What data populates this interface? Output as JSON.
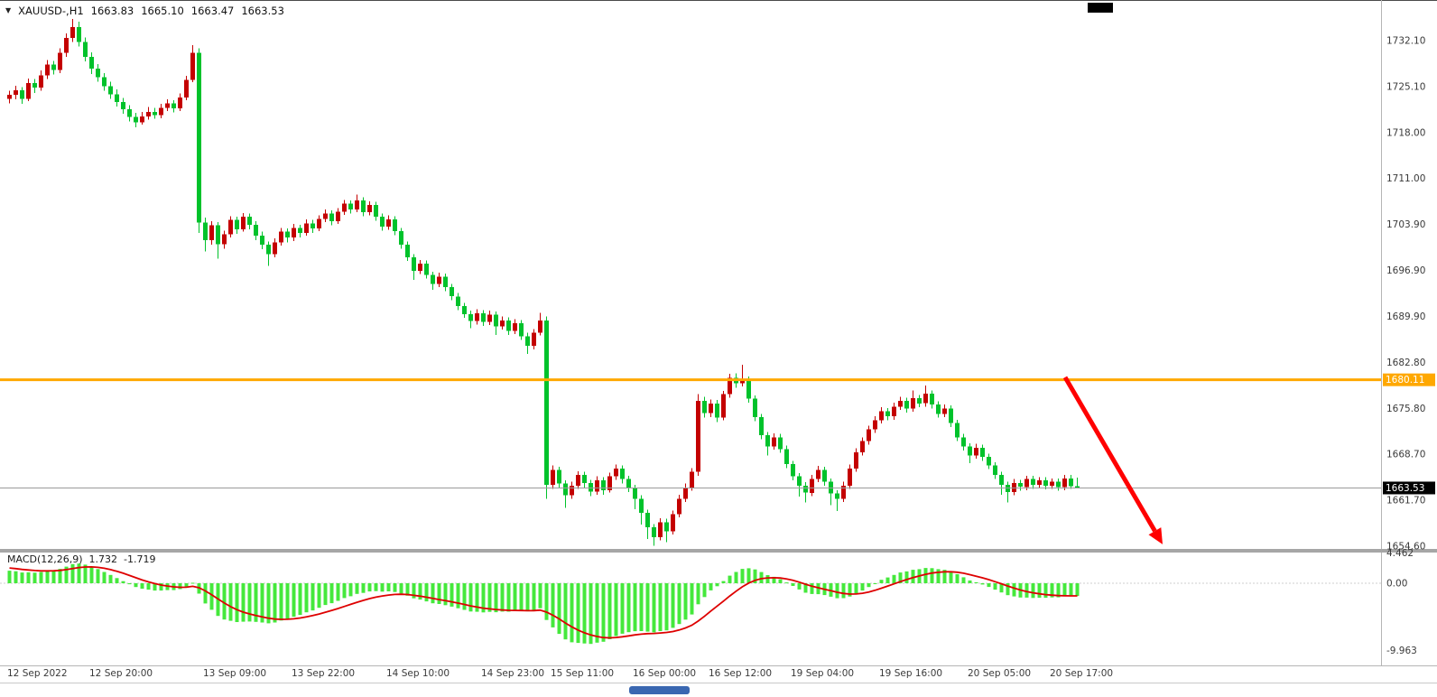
{
  "header": {
    "dropdown_icon": "▼",
    "symbol": "XAUUSD-,H1",
    "open": "1663.83",
    "high": "1665.10",
    "low": "1663.47",
    "close": "1663.53"
  },
  "colors": {
    "up": "#C40000",
    "down": "#00C22B",
    "hline": "#FFA800",
    "macd_hist": "#45E83C",
    "macd_signal": "#DE0000",
    "arrow": "#FF0000",
    "current_price_bg": "#000000",
    "scale_text": "#3a3a3a"
  },
  "chart_data": {
    "type": "candlestick",
    "symbol": "XAUUSD-",
    "timeframe": "H1",
    "y_axis": {
      "side": "right",
      "ticks": [
        "1732.10",
        "1725.10",
        "1718.00",
        "1711.00",
        "1703.90",
        "1696.90",
        "1689.90",
        "1682.80",
        "1675.80",
        "1668.70",
        "1661.70",
        "1654.60"
      ]
    },
    "x_axis": {
      "labels": [
        {
          "i": 0,
          "label": "12 Sep 2022"
        },
        {
          "i": 13,
          "label": "12 Sep 20:00"
        },
        {
          "i": 31,
          "label": "13 Sep 09:00"
        },
        {
          "i": 45,
          "label": "13 Sep 22:00"
        },
        {
          "i": 60,
          "label": "14 Sep 10:00"
        },
        {
          "i": 75,
          "label": "14 Sep 23:00"
        },
        {
          "i": 86,
          "label": "15 Sep 11:00"
        },
        {
          "i": 99,
          "label": "16 Sep 00:00"
        },
        {
          "i": 111,
          "label": "16 Sep 12:00"
        },
        {
          "i": 124,
          "label": "19 Sep 04:00"
        },
        {
          "i": 138,
          "label": "19 Sep 16:00"
        },
        {
          "i": 152,
          "label": "20 Sep 05:00"
        },
        {
          "i": 165,
          "label": "20 Sep 17:00"
        }
      ]
    },
    "current_price": "1663.53",
    "annotations": {
      "hline": {
        "label": "1680.11",
        "price": 1680.11
      },
      "arrow": {
        "direction": "down",
        "from_price": 1680.5,
        "to_price": 1654.9
      }
    },
    "indicator": {
      "label": "MACD(12,26,9)",
      "value_main": "1.732",
      "value_signal": "-1.719",
      "ticks": [
        "4.462",
        "0.00",
        "-9.963"
      ]
    },
    "candles": [
      [
        1723.2,
        1724.4,
        1722.5,
        1723.8
      ],
      [
        1723.8,
        1725.2,
        1723.1,
        1724.5
      ],
      [
        1724.5,
        1725.0,
        1722.4,
        1723.2
      ],
      [
        1723.2,
        1726.3,
        1722.8,
        1725.6
      ],
      [
        1725.6,
        1726.2,
        1724.1,
        1724.9
      ],
      [
        1724.9,
        1727.5,
        1724.4,
        1726.8
      ],
      [
        1726.8,
        1729.1,
        1726.2,
        1728.4
      ],
      [
        1728.4,
        1729.0,
        1726.9,
        1727.6
      ],
      [
        1727.6,
        1730.9,
        1727.1,
        1730.2
      ],
      [
        1730.2,
        1733.2,
        1729.6,
        1732.5
      ],
      [
        1732.5,
        1735.4,
        1731.9,
        1734.2
      ],
      [
        1734.2,
        1735.0,
        1731.2,
        1731.9
      ],
      [
        1731.9,
        1732.6,
        1728.9,
        1729.6
      ],
      [
        1729.6,
        1730.3,
        1727.0,
        1727.8
      ],
      [
        1727.8,
        1728.5,
        1725.8,
        1726.5
      ],
      [
        1726.5,
        1727.1,
        1724.4,
        1725.1
      ],
      [
        1725.1,
        1725.8,
        1723.2,
        1723.9
      ],
      [
        1723.9,
        1724.6,
        1722.0,
        1722.7
      ],
      [
        1722.7,
        1723.3,
        1720.9,
        1721.6
      ],
      [
        1721.6,
        1722.2,
        1719.7,
        1720.4
      ],
      [
        1720.4,
        1721.0,
        1718.8,
        1719.6
      ],
      [
        1719.6,
        1721.2,
        1719.2,
        1720.5
      ],
      [
        1720.5,
        1721.9,
        1720.0,
        1721.2
      ],
      [
        1721.2,
        1721.8,
        1720.1,
        1720.7
      ],
      [
        1720.7,
        1722.4,
        1720.2,
        1721.8
      ],
      [
        1721.8,
        1723.1,
        1721.3,
        1722.5
      ],
      [
        1722.5,
        1723.0,
        1721.1,
        1721.7
      ],
      [
        1721.7,
        1724.0,
        1721.3,
        1723.4
      ],
      [
        1723.4,
        1726.7,
        1723.0,
        1726.1
      ],
      [
        1726.1,
        1731.4,
        1725.7,
        1730.2
      ],
      [
        1730.2,
        1730.9,
        1702.6,
        1704.2
      ],
      [
        1704.2,
        1705.0,
        1699.8,
        1701.5
      ],
      [
        1701.5,
        1704.4,
        1700.8,
        1703.8
      ],
      [
        1703.8,
        1704.3,
        1698.7,
        1700.9
      ],
      [
        1700.9,
        1703.0,
        1700.2,
        1702.4
      ],
      [
        1702.4,
        1705.2,
        1701.9,
        1704.6
      ],
      [
        1704.6,
        1705.1,
        1702.5,
        1703.2
      ],
      [
        1703.2,
        1705.7,
        1702.8,
        1705.1
      ],
      [
        1705.1,
        1705.6,
        1703.2,
        1703.9
      ],
      [
        1703.9,
        1704.4,
        1701.5,
        1702.2
      ],
      [
        1702.2,
        1702.8,
        1700.1,
        1700.8
      ],
      [
        1700.8,
        1701.3,
        1697.6,
        1699.4
      ],
      [
        1699.4,
        1701.8,
        1698.9,
        1701.2
      ],
      [
        1701.2,
        1703.4,
        1700.7,
        1702.8
      ],
      [
        1702.8,
        1703.3,
        1701.2,
        1701.9
      ],
      [
        1701.9,
        1704.0,
        1701.4,
        1703.4
      ],
      [
        1703.4,
        1703.9,
        1701.9,
        1702.6
      ],
      [
        1702.6,
        1704.7,
        1702.2,
        1704.1
      ],
      [
        1704.1,
        1704.6,
        1702.6,
        1703.3
      ],
      [
        1703.3,
        1705.3,
        1702.9,
        1704.8
      ],
      [
        1704.8,
        1706.2,
        1704.3,
        1705.6
      ],
      [
        1705.6,
        1706.1,
        1703.8,
        1704.4
      ],
      [
        1704.4,
        1706.4,
        1704.0,
        1705.9
      ],
      [
        1705.9,
        1707.7,
        1705.4,
        1707.1
      ],
      [
        1707.1,
        1707.6,
        1705.6,
        1706.2
      ],
      [
        1706.2,
        1708.5,
        1705.8,
        1707.6
      ],
      [
        1707.6,
        1708.1,
        1705.2,
        1705.8
      ],
      [
        1705.8,
        1707.5,
        1705.3,
        1706.9
      ],
      [
        1706.9,
        1707.4,
        1704.5,
        1705.1
      ],
      [
        1705.1,
        1705.6,
        1703.0,
        1703.6
      ],
      [
        1703.6,
        1705.3,
        1703.1,
        1704.7
      ],
      [
        1704.7,
        1705.2,
        1702.3,
        1702.9
      ],
      [
        1702.9,
        1703.4,
        1700.2,
        1700.8
      ],
      [
        1700.8,
        1701.3,
        1698.3,
        1698.9
      ],
      [
        1698.9,
        1699.4,
        1695.4,
        1696.8
      ],
      [
        1696.8,
        1698.5,
        1696.3,
        1697.9
      ],
      [
        1697.9,
        1698.4,
        1695.6,
        1696.2
      ],
      [
        1696.2,
        1696.7,
        1693.9,
        1694.8
      ],
      [
        1694.8,
        1696.5,
        1694.3,
        1695.9
      ],
      [
        1695.9,
        1696.4,
        1693.7,
        1694.3
      ],
      [
        1694.3,
        1694.8,
        1692.3,
        1692.9
      ],
      [
        1692.9,
        1693.4,
        1690.8,
        1691.4
      ],
      [
        1691.4,
        1691.9,
        1689.6,
        1690.2
      ],
      [
        1690.2,
        1690.7,
        1688.0,
        1689.1
      ],
      [
        1689.1,
        1690.9,
        1688.6,
        1690.3
      ],
      [
        1690.3,
        1690.8,
        1688.4,
        1689.0
      ],
      [
        1689.0,
        1690.7,
        1688.5,
        1690.1
      ],
      [
        1690.1,
        1690.6,
        1687.0,
        1688.3
      ],
      [
        1688.3,
        1689.8,
        1687.8,
        1689.2
      ],
      [
        1689.2,
        1689.7,
        1687.0,
        1687.6
      ],
      [
        1687.6,
        1689.4,
        1687.1,
        1688.8
      ],
      [
        1688.8,
        1689.3,
        1686.2,
        1686.8
      ],
      [
        1686.8,
        1687.3,
        1684.1,
        1685.3
      ],
      [
        1685.3,
        1687.9,
        1684.8,
        1687.3
      ],
      [
        1687.3,
        1690.4,
        1686.9,
        1689.2
      ],
      [
        1689.2,
        1689.8,
        1661.9,
        1664.0
      ],
      [
        1664.0,
        1667.0,
        1663.4,
        1666.3
      ],
      [
        1666.3,
        1666.8,
        1663.5,
        1664.2
      ],
      [
        1664.2,
        1664.7,
        1660.5,
        1662.4
      ],
      [
        1662.4,
        1664.5,
        1661.9,
        1663.9
      ],
      [
        1663.9,
        1666.1,
        1663.4,
        1665.5
      ],
      [
        1665.5,
        1666.0,
        1663.6,
        1664.3
      ],
      [
        1664.3,
        1664.8,
        1662.3,
        1663.0
      ],
      [
        1663.0,
        1665.3,
        1662.5,
        1664.7
      ],
      [
        1664.7,
        1665.2,
        1662.5,
        1663.2
      ],
      [
        1663.2,
        1665.9,
        1662.8,
        1665.3
      ],
      [
        1665.3,
        1667.1,
        1664.8,
        1666.5
      ],
      [
        1666.5,
        1667.0,
        1664.2,
        1664.9
      ],
      [
        1664.9,
        1665.4,
        1662.9,
        1663.5
      ],
      [
        1663.5,
        1664.0,
        1660.3,
        1661.9
      ],
      [
        1661.9,
        1662.4,
        1657.9,
        1659.7
      ],
      [
        1659.7,
        1660.2,
        1655.7,
        1657.5
      ],
      [
        1657.5,
        1658.0,
        1654.7,
        1656.0
      ],
      [
        1656.0,
        1658.9,
        1655.5,
        1658.3
      ],
      [
        1658.3,
        1658.8,
        1655.2,
        1656.9
      ],
      [
        1656.9,
        1660.1,
        1656.4,
        1659.5
      ],
      [
        1659.5,
        1662.5,
        1659.0,
        1661.9
      ],
      [
        1661.9,
        1664.2,
        1661.4,
        1663.6
      ],
      [
        1663.6,
        1666.6,
        1663.1,
        1666.0
      ],
      [
        1666.0,
        1677.9,
        1665.4,
        1676.9
      ],
      [
        1676.9,
        1677.5,
        1674.3,
        1675.0
      ],
      [
        1675.0,
        1677.1,
        1674.4,
        1676.5
      ],
      [
        1676.5,
        1677.0,
        1673.6,
        1674.3
      ],
      [
        1674.3,
        1678.4,
        1673.9,
        1677.9
      ],
      [
        1677.9,
        1681.0,
        1677.4,
        1680.4
      ],
      [
        1680.4,
        1681.1,
        1678.9,
        1679.6
      ],
      [
        1679.6,
        1682.4,
        1679.1,
        1680.1
      ],
      [
        1680.1,
        1680.6,
        1676.6,
        1677.2
      ],
      [
        1677.2,
        1677.7,
        1673.8,
        1674.4
      ],
      [
        1674.4,
        1674.9,
        1671.0,
        1671.6
      ],
      [
        1671.6,
        1672.1,
        1668.5,
        1669.9
      ],
      [
        1669.9,
        1671.9,
        1669.4,
        1671.3
      ],
      [
        1671.3,
        1671.8,
        1668.9,
        1669.5
      ],
      [
        1669.5,
        1670.0,
        1666.6,
        1667.2
      ],
      [
        1667.2,
        1667.7,
        1664.7,
        1665.3
      ],
      [
        1665.3,
        1665.8,
        1662.2,
        1663.9
      ],
      [
        1663.9,
        1664.4,
        1661.3,
        1662.8
      ],
      [
        1662.8,
        1665.5,
        1662.3,
        1664.9
      ],
      [
        1664.9,
        1666.9,
        1664.4,
        1666.3
      ],
      [
        1666.3,
        1666.8,
        1663.9,
        1664.5
      ],
      [
        1664.5,
        1665.0,
        1660.9,
        1662.7
      ],
      [
        1662.7,
        1663.2,
        1660.0,
        1661.9
      ],
      [
        1661.9,
        1664.5,
        1661.4,
        1663.9
      ],
      [
        1663.9,
        1667.1,
        1663.4,
        1666.5
      ],
      [
        1666.5,
        1669.6,
        1666.0,
        1669.0
      ],
      [
        1669.0,
        1671.3,
        1668.5,
        1670.7
      ],
      [
        1670.7,
        1673.1,
        1670.2,
        1672.5
      ],
      [
        1672.5,
        1674.5,
        1672.0,
        1673.9
      ],
      [
        1673.9,
        1675.9,
        1673.4,
        1675.3
      ],
      [
        1675.3,
        1675.8,
        1673.9,
        1674.5
      ],
      [
        1674.5,
        1676.6,
        1674.0,
        1676.0
      ],
      [
        1676.0,
        1677.5,
        1675.5,
        1676.9
      ],
      [
        1676.9,
        1677.4,
        1675.1,
        1675.7
      ],
      [
        1675.7,
        1678.5,
        1675.2,
        1677.3
      ],
      [
        1677.3,
        1677.8,
        1675.9,
        1676.5
      ],
      [
        1676.5,
        1679.2,
        1676.0,
        1678.0
      ],
      [
        1678.0,
        1678.5,
        1675.7,
        1676.3
      ],
      [
        1676.3,
        1676.8,
        1674.3,
        1674.9
      ],
      [
        1674.9,
        1676.3,
        1674.4,
        1675.7
      ],
      [
        1675.7,
        1676.2,
        1672.9,
        1673.5
      ],
      [
        1673.5,
        1674.0,
        1670.7,
        1671.3
      ],
      [
        1671.3,
        1671.8,
        1669.3,
        1669.9
      ],
      [
        1669.9,
        1670.4,
        1667.3,
        1668.5
      ],
      [
        1668.5,
        1670.3,
        1668.0,
        1669.7
      ],
      [
        1669.7,
        1670.2,
        1667.7,
        1668.3
      ],
      [
        1668.3,
        1668.8,
        1666.4,
        1667.0
      ],
      [
        1667.0,
        1667.5,
        1664.9,
        1665.5
      ],
      [
        1665.5,
        1666.0,
        1662.5,
        1664.0
      ],
      [
        1664.0,
        1664.5,
        1661.3,
        1662.9
      ],
      [
        1662.9,
        1664.9,
        1662.4,
        1664.3
      ],
      [
        1664.3,
        1664.8,
        1663.1,
        1663.7
      ],
      [
        1663.7,
        1665.4,
        1663.2,
        1664.9
      ],
      [
        1664.9,
        1665.4,
        1663.4,
        1664.0
      ],
      [
        1664.0,
        1665.2,
        1663.5,
        1664.7
      ],
      [
        1664.7,
        1665.2,
        1663.3,
        1663.9
      ],
      [
        1663.9,
        1665.0,
        1663.4,
        1664.5
      ],
      [
        1664.5,
        1665.0,
        1663.1,
        1663.7
      ],
      [
        1663.7,
        1665.5,
        1663.2,
        1665.0
      ],
      [
        1665.0,
        1665.5,
        1663.4,
        1663.83
      ],
      [
        1663.83,
        1665.1,
        1663.47,
        1663.53
      ]
    ]
  }
}
